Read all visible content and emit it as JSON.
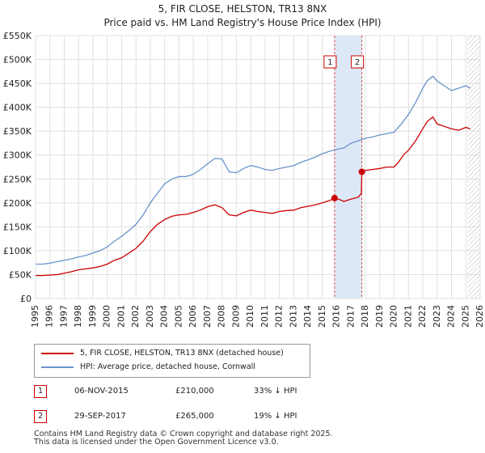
{
  "chart_data": {
    "type": "line",
    "title": "5, FIR CLOSE, HELSTON, TR13 8NX",
    "subtitle": "Price paid vs. HM Land Registry's House Price Index (HPI)",
    "xlim": [
      1995,
      2026
    ],
    "ylim": [
      0,
      550000
    ],
    "x_ticks": [
      "1995",
      "1996",
      "1997",
      "1998",
      "1999",
      "2000",
      "2001",
      "2002",
      "2003",
      "2004",
      "2005",
      "2006",
      "2007",
      "2008",
      "2009",
      "2010",
      "2011",
      "2012",
      "2013",
      "2014",
      "2015",
      "2016",
      "2017",
      "2018",
      "2019",
      "2020",
      "2021",
      "2022",
      "2023",
      "2024",
      "2025",
      "2026"
    ],
    "y_ticks": [
      {
        "value": 0,
        "label": "£0"
      },
      {
        "value": 50000,
        "label": "£50K"
      },
      {
        "value": 100000,
        "label": "£100K"
      },
      {
        "value": 150000,
        "label": "£150K"
      },
      {
        "value": 200000,
        "label": "£200K"
      },
      {
        "value": 250000,
        "label": "£250K"
      },
      {
        "value": 300000,
        "label": "£300K"
      },
      {
        "value": 350000,
        "label": "£350K"
      },
      {
        "value": 400000,
        "label": "£400K"
      },
      {
        "value": 450000,
        "label": "£450K"
      },
      {
        "value": 500000,
        "label": "£500K"
      },
      {
        "value": 550000,
        "label": "£550K"
      }
    ],
    "grid": true,
    "shaded_span": [
      2015.85,
      2017.75
    ],
    "hatched_from": 2025.1,
    "colors": {
      "property": "#cc0000",
      "hpi": "#6a93cc",
      "shade": "#dde8f7",
      "grid": "#e0e0e0",
      "marker_line": "#e05050"
    },
    "series": [
      {
        "name": "5, FIR CLOSE, HELSTON, TR13 8NX (detached house)",
        "color": "#cc0000",
        "x": [
          1995,
          1995.5,
          1996,
          1996.5,
          1997,
          1997.5,
          1998,
          1998.5,
          1999,
          1999.5,
          2000,
          2000.5,
          2001,
          2001.5,
          2002,
          2002.5,
          2003,
          2003.5,
          2004,
          2004.5,
          2005,
          2005.5,
          2006,
          2006.5,
          2007,
          2007.5,
          2008,
          2008.5,
          2009,
          2009.5,
          2010,
          2010.5,
          2011,
          2011.5,
          2012,
          2012.5,
          2013,
          2013.5,
          2014,
          2014.5,
          2015,
          2015.5,
          2015.85,
          2016.2,
          2016.5,
          2017,
          2017.5,
          2017.72,
          2017.75,
          2018,
          2018.5,
          2019,
          2019.5,
          2020,
          2020.3,
          2020.7,
          2021,
          2021.5,
          2022,
          2022.3,
          2022.7,
          2023,
          2023.5,
          2024,
          2024.5,
          2025,
          2025.3
        ],
        "y": [
          48000,
          48000,
          49000,
          50000,
          53000,
          56000,
          60000,
          62000,
          64000,
          67000,
          72000,
          80000,
          85000,
          95000,
          105000,
          120000,
          140000,
          155000,
          165000,
          172000,
          175000,
          176000,
          180000,
          185000,
          192000,
          196000,
          190000,
          175000,
          173000,
          180000,
          185000,
          182000,
          180000,
          178000,
          182000,
          184000,
          185000,
          190000,
          193000,
          196000,
          200000,
          205000,
          210000,
          207000,
          203000,
          208000,
          212000,
          220000,
          265000,
          268000,
          270000,
          272000,
          275000,
          275000,
          285000,
          302000,
          310000,
          330000,
          355000,
          370000,
          380000,
          365000,
          360000,
          355000,
          352000,
          358000,
          355000
        ]
      },
      {
        "name": "HPI: Average price, detached house, Cornwall",
        "color": "#6a93cc",
        "x": [
          1995,
          1995.5,
          1996,
          1996.5,
          1997,
          1997.5,
          1998,
          1998.5,
          1999,
          1999.5,
          2000,
          2000.5,
          2001,
          2001.5,
          2002,
          2002.5,
          2003,
          2003.5,
          2004,
          2004.5,
          2005,
          2005.5,
          2006,
          2006.5,
          2007,
          2007.5,
          2008,
          2008.5,
          2009,
          2009.5,
          2010,
          2010.5,
          2011,
          2011.5,
          2012,
          2012.5,
          2013,
          2013.5,
          2014,
          2014.5,
          2015,
          2015.5,
          2016,
          2016.5,
          2017,
          2017.5,
          2018,
          2018.5,
          2019,
          2019.5,
          2020,
          2020.5,
          2021,
          2021.5,
          2022,
          2022.3,
          2022.7,
          2023,
          2023.5,
          2024,
          2024.5,
          2025,
          2025.3
        ],
        "y": [
          72000,
          72000,
          74000,
          77000,
          80000,
          83000,
          87000,
          90000,
          95000,
          100000,
          108000,
          120000,
          130000,
          142000,
          155000,
          175000,
          200000,
          220000,
          240000,
          250000,
          255000,
          255000,
          260000,
          270000,
          282000,
          293000,
          292000,
          265000,
          263000,
          272000,
          278000,
          275000,
          270000,
          268000,
          272000,
          275000,
          278000,
          285000,
          290000,
          296000,
          303000,
          308000,
          312000,
          315000,
          325000,
          330000,
          335000,
          338000,
          342000,
          345000,
          348000,
          365000,
          385000,
          410000,
          440000,
          455000,
          465000,
          455000,
          445000,
          435000,
          440000,
          445000,
          440000
        ]
      }
    ],
    "sales": [
      {
        "id": "1",
        "date": "06-NOV-2015",
        "x": 2015.85,
        "price": 210000,
        "price_label": "£210,000",
        "hpi_diff": "33% ↓ HPI"
      },
      {
        "id": "2",
        "date": "29-SEP-2017",
        "x": 2017.75,
        "price": 265000,
        "price_label": "£265,000",
        "hpi_diff": "19% ↓ HPI"
      }
    ],
    "footer": [
      "Contains HM Land Registry data © Crown copyright and database right 2025.",
      "This data is licensed under the Open Government Licence v3.0."
    ]
  }
}
